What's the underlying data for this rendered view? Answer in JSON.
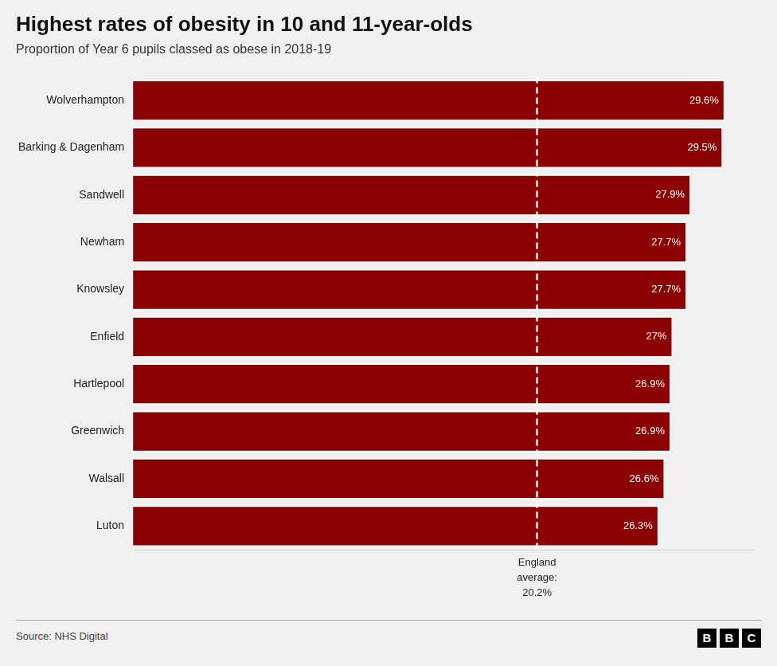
{
  "chart_data": {
    "type": "bar",
    "orientation": "horizontal",
    "title": "Highest rates of obesity in 10 and 11-year-olds",
    "subtitle": "Proportion of Year 6 pupils classed as obese in 2018-19",
    "categories": [
      "Wolverhampton",
      "Barking & Dagenham",
      "Sandwell",
      "Newham",
      "Knowsley",
      "Enfield",
      "Hartlepool",
      "Greenwich",
      "Walsall",
      "Luton"
    ],
    "values": [
      29.6,
      29.5,
      27.9,
      27.7,
      27.7,
      27.0,
      26.9,
      26.9,
      26.6,
      26.3
    ],
    "value_labels": [
      "29.6%",
      "29.5%",
      "27.9%",
      "27.7%",
      "27.7%",
      "27%",
      "26.9%",
      "26.9%",
      "26.6%",
      "26.3%"
    ],
    "data_labels": true,
    "color": "#8B0000",
    "xlim": [
      0,
      31
    ],
    "tick_labels": "y",
    "grid": false,
    "annotations": [
      {
        "x": 20.2,
        "text": "England\naverage:\n20.2%"
      }
    ],
    "source": "Source: NHS Digital",
    "logo": "BBC"
  }
}
